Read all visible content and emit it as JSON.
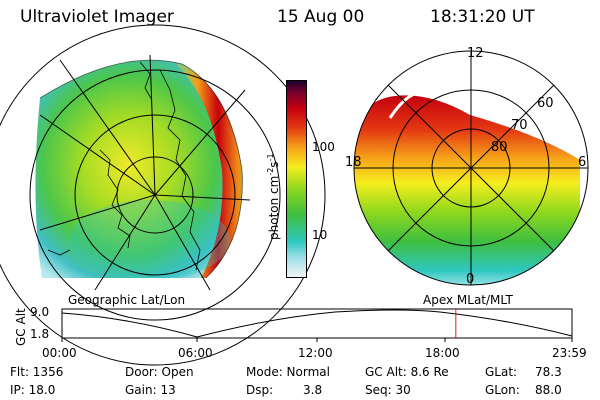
{
  "header": {
    "instrument": "Ultraviolet Imager",
    "date": "15 Aug 00",
    "time": "18:31:20 UT"
  },
  "left_panel": {
    "label": "Geographic Lat/Lon"
  },
  "right_panel": {
    "label": "Apex MLat/MLT",
    "mlt_labels": [
      "12",
      "18",
      "6",
      "0"
    ],
    "mlat_labels": [
      "60",
      "70",
      "80"
    ]
  },
  "colorbar": {
    "unit": "photon cm",
    "unit_sup1": "-2",
    "unit_mid": "s",
    "unit_sup2": "-1",
    "ticks": [
      "100",
      "10"
    ]
  },
  "altitude_plot": {
    "ylabel": "GC Alt",
    "yticks": [
      "9.0",
      "1.8"
    ],
    "xticks": [
      "00:00",
      "06:00",
      "12:00",
      "18:00",
      "23:59"
    ],
    "current_marker_hours": 18.52
  },
  "info": {
    "flt": "Flt: 1356",
    "ip": "IP: 18.0",
    "door": "Door: Open",
    "gain": "Gain: 13",
    "mode": "Mode: Normal",
    "dsp_label": "Dsp:",
    "dsp_value": "3.8",
    "gc_alt": "GC Alt: 8.6 Re",
    "seq": "Seq: 30",
    "glat": "GLat:",
    "glat_value": "78.3",
    "glon": "GLon:",
    "glon_value": "88.0"
  },
  "colors": {
    "marker": "#e02020",
    "colorscale": [
      "#f4f4f4",
      "#9be0e8",
      "#2ec7c0",
      "#3fbf3f",
      "#8ed81e",
      "#f5ee1e",
      "#f7a21a",
      "#e43a12",
      "#c4000f",
      "#7a0030",
      "#1a0030"
    ]
  }
}
